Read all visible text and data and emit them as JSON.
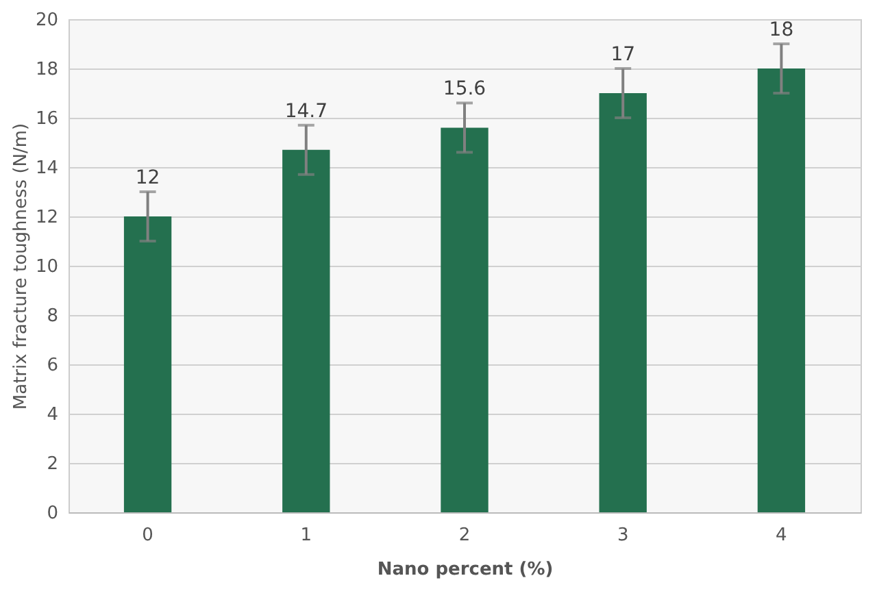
{
  "chart_data": {
    "type": "bar",
    "xlabel": "Nano percent (%)",
    "ylabel": "Matrix fracture toughness (N/m)",
    "categories": [
      "0",
      "1",
      "2",
      "3",
      "4"
    ],
    "values": [
      12,
      14.7,
      15.6,
      17,
      18
    ],
    "errors": [
      1,
      1,
      1,
      1,
      1
    ],
    "color": "#24704f",
    "ylim": [
      0,
      20
    ],
    "yticks": [
      0,
      2,
      4,
      6,
      8,
      10,
      12,
      14,
      16,
      18,
      20
    ],
    "grid": "y",
    "data_labels": true
  }
}
